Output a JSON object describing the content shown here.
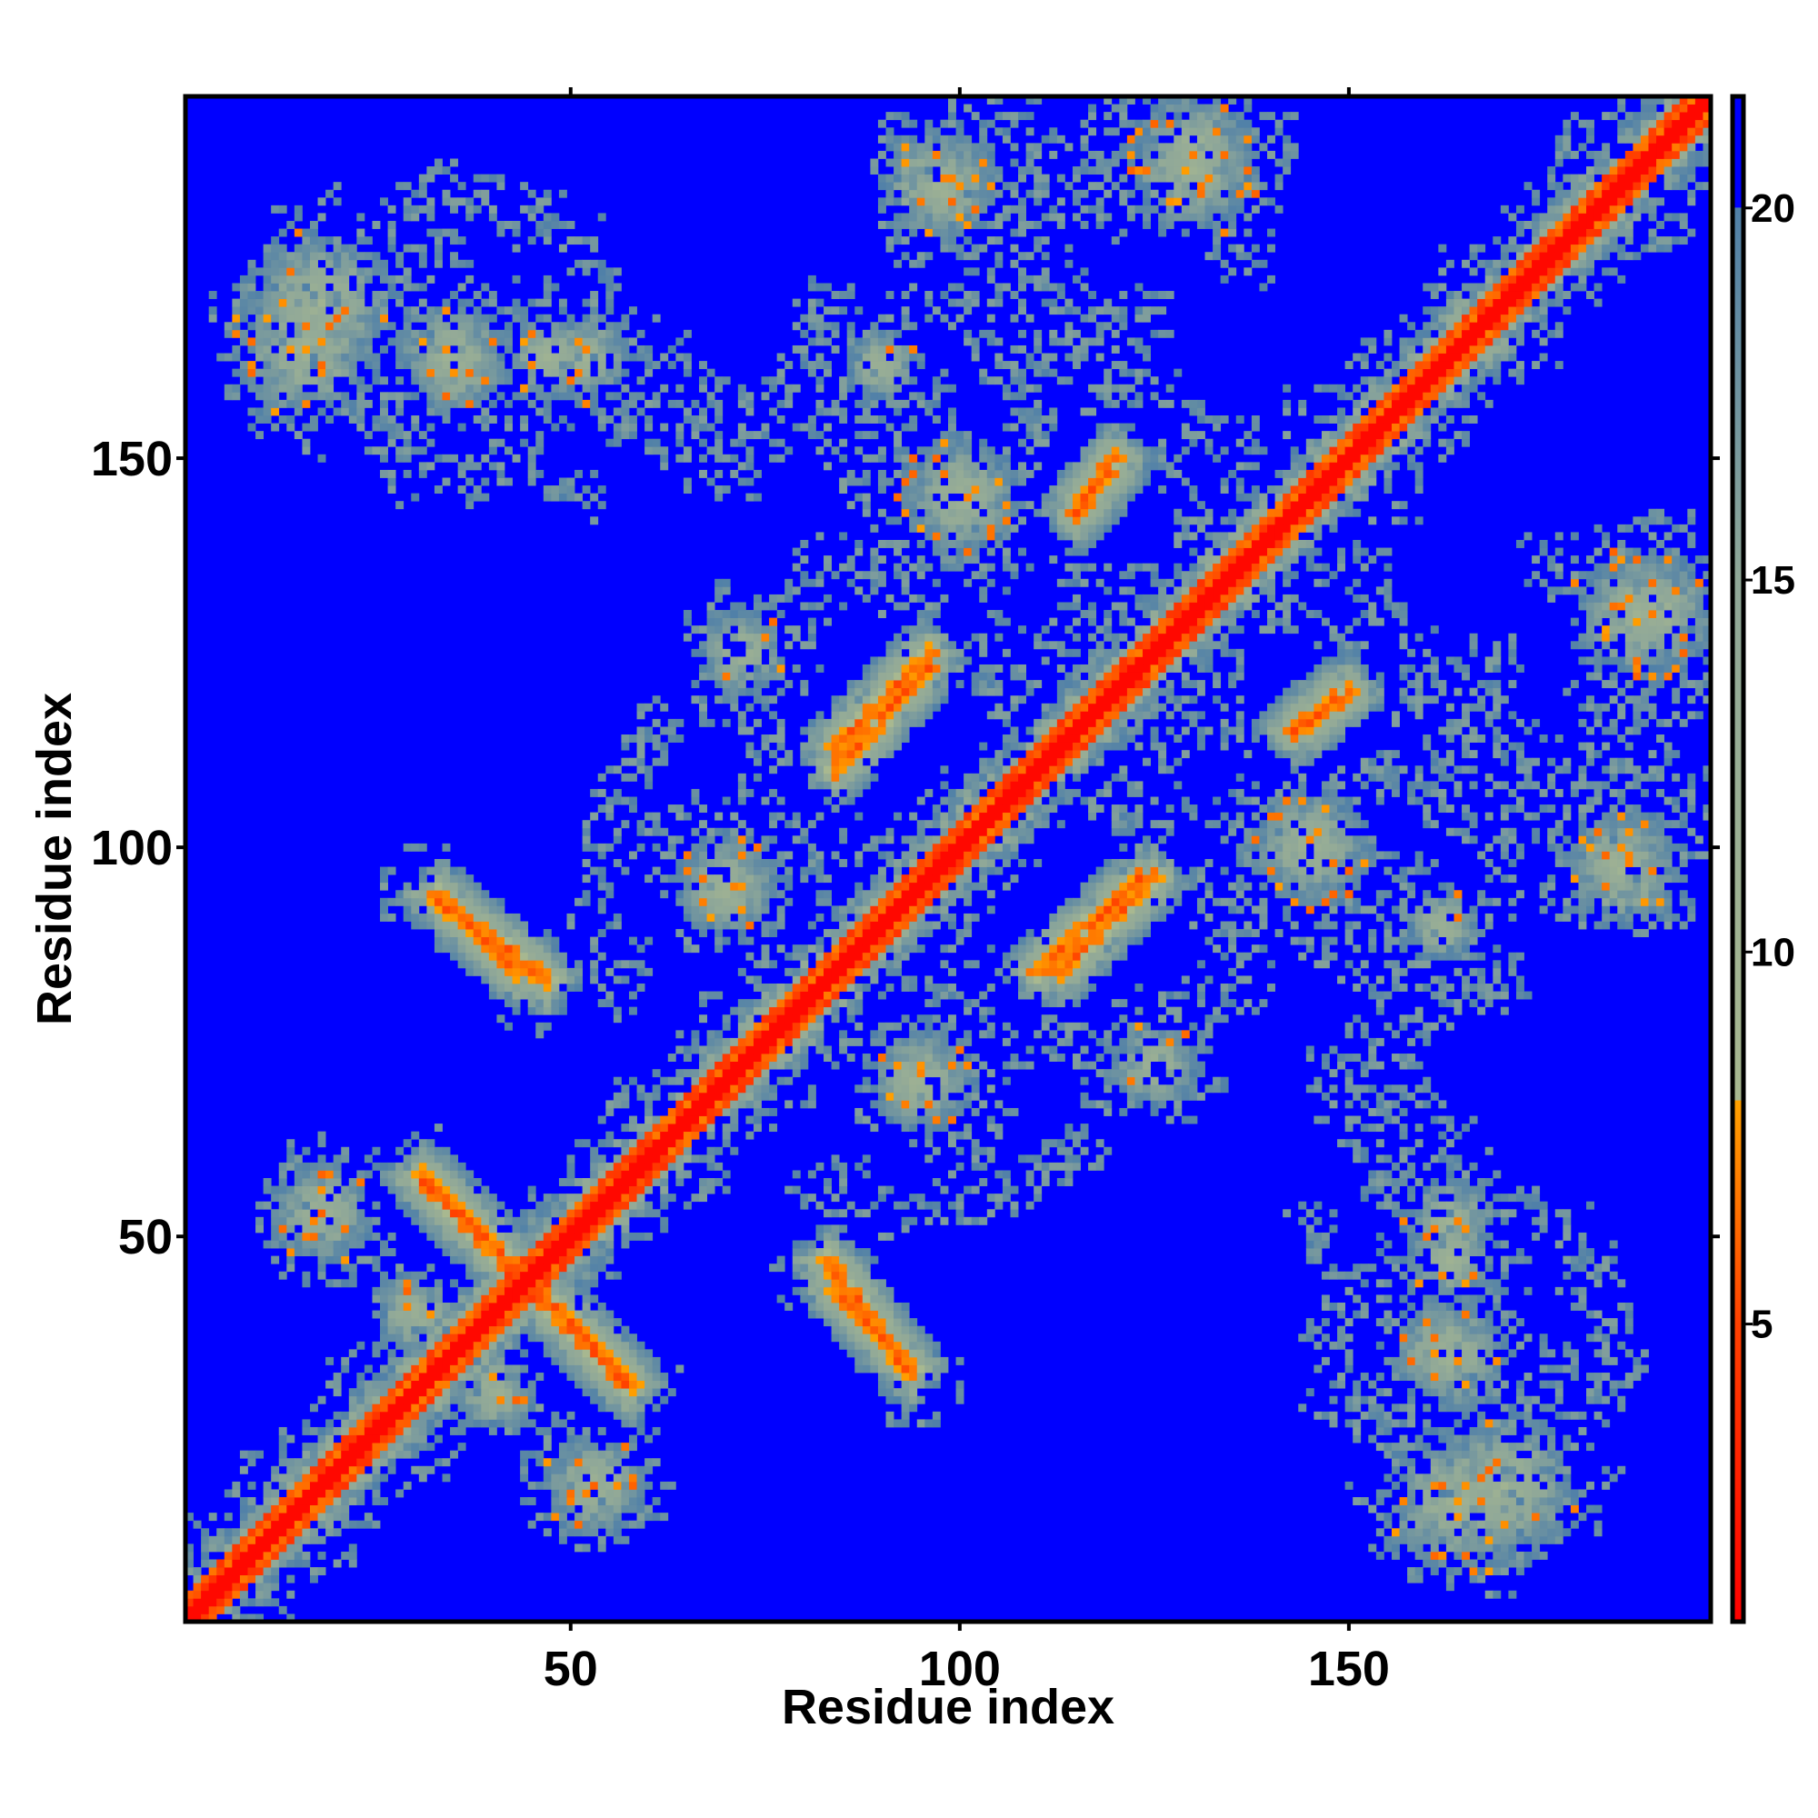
{
  "chart_data": {
    "type": "heatmap",
    "title": "",
    "xlabel": "Residue index",
    "ylabel": "Residue index",
    "n_residues": 196,
    "xlim": [
      1,
      196
    ],
    "ylim": [
      1,
      196
    ],
    "x_ticks": [
      50,
      100,
      150
    ],
    "y_ticks": [
      50,
      100,
      150
    ],
    "x_tick_labels": [
      "50",
      "100",
      "150"
    ],
    "y_tick_labels": [
      "50",
      "100",
      "150"
    ],
    "colorbar": {
      "ticks": [
        5,
        10,
        15,
        20
      ],
      "tick_labels": [
        "5",
        "10",
        "15",
        "20"
      ],
      "range": [
        1,
        21.5
      ],
      "stops": [
        {
          "value": 1,
          "color": "#ff0000"
        },
        {
          "value": 5,
          "color": "#ff4000"
        },
        {
          "value": 8,
          "color": "#ffa000"
        },
        {
          "value": 8.01,
          "color": "#a8b890"
        },
        {
          "value": 15,
          "color": "#90a898"
        },
        {
          "value": 20,
          "color": "#5080a8"
        },
        {
          "value": 20.01,
          "color": "#0000ff"
        }
      ]
    },
    "value_meaning": "inter-residue distance; blue = beyond cutoff",
    "features": [
      {
        "kind": "diagonal",
        "note": "self contacts along i=j, full length"
      },
      {
        "kind": "antiparallel",
        "i_range": [
          33,
          47
        ],
        "j_range": [
          93,
          83
        ]
      },
      {
        "kind": "antiparallel",
        "i_range": [
          31,
          42
        ],
        "j_range": [
          57,
          47
        ]
      },
      {
        "kind": "antiparallel",
        "i_range": [
          44,
          58
        ],
        "j_range": [
          44,
          31
        ]
      },
      {
        "kind": "antiparallel",
        "i_range": [
          84,
          94
        ],
        "j_range": [
          43,
          33
        ]
      },
      {
        "kind": "parallel",
        "i_range": [
          84,
          96
        ],
        "j_range": [
          110,
          123
        ]
      },
      {
        "kind": "parallel",
        "i_range": [
          113,
          125
        ],
        "j_range": [
          84,
          96
        ]
      },
      {
        "kind": "parallel",
        "i_range": [
          115,
          120
        ],
        "j_range": [
          143,
          150
        ]
      },
      {
        "kind": "parallel",
        "i_range": [
          143,
          150
        ],
        "j_range": [
          115,
          120
        ]
      },
      {
        "kind": "cluster",
        "center": [
          16,
          164
        ],
        "size": 10
      },
      {
        "kind": "cluster",
        "center": [
          35,
          162
        ],
        "size": 6
      },
      {
        "kind": "cluster",
        "center": [
          52,
          163
        ],
        "size": 6
      },
      {
        "kind": "cluster",
        "center": [
          90,
          162
        ],
        "size": 5
      },
      {
        "kind": "cluster",
        "center": [
          98,
          185
        ],
        "size": 7
      },
      {
        "kind": "cluster",
        "center": [
          130,
          187
        ],
        "size": 9
      },
      {
        "kind": "cluster",
        "center": [
          190,
          130
        ],
        "size": 8
      },
      {
        "kind": "cluster",
        "center": [
          163,
          47
        ],
        "size": 6
      },
      {
        "kind": "cluster",
        "center": [
          163,
          35
        ],
        "size": 8
      },
      {
        "kind": "cluster",
        "center": [
          170,
          18
        ],
        "size": 10
      },
      {
        "kind": "cluster",
        "center": [
          145,
          100
        ],
        "size": 8
      },
      {
        "kind": "cluster",
        "center": [
          100,
          145
        ],
        "size": 8
      },
      {
        "kind": "cluster",
        "center": [
          18,
          53
        ],
        "size": 7
      },
      {
        "kind": "cluster",
        "center": [
          53,
          18
        ],
        "size": 7
      },
      {
        "kind": "cluster",
        "center": [
          70,
          95
        ],
        "size": 7
      },
      {
        "kind": "cluster",
        "center": [
          95,
          70
        ],
        "size": 7
      },
      {
        "kind": "cluster",
        "center": [
          185,
          97
        ],
        "size": 8
      },
      {
        "kind": "cluster",
        "center": [
          40,
          30
        ],
        "size": 6
      },
      {
        "kind": "cluster",
        "center": [
          125,
          72
        ],
        "size": 6
      }
    ]
  }
}
